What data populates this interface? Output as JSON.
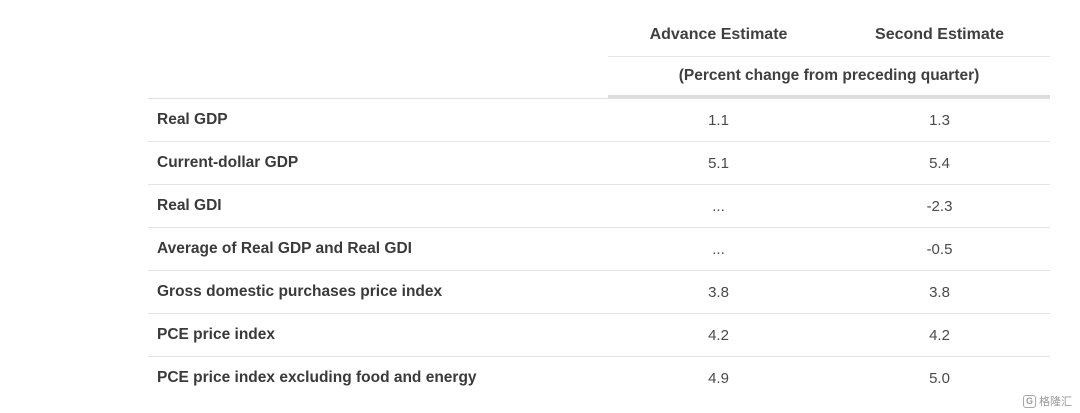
{
  "table": {
    "columns": [
      "Advance Estimate",
      "Second Estimate"
    ],
    "subheader": "(Percent change from preceding quarter)",
    "rows": [
      {
        "label": "Real GDP",
        "advance": "1.1",
        "second": "1.3"
      },
      {
        "label": "Current-dollar GDP",
        "advance": "5.1",
        "second": "5.4"
      },
      {
        "label": "Real GDI",
        "advance": "...",
        "second": "-2.3"
      },
      {
        "label": "Average of Real GDP and Real GDI",
        "advance": "...",
        "second": "-0.5"
      },
      {
        "label": "Gross domestic purchases price index",
        "advance": "3.8",
        "second": "3.8"
      },
      {
        "label": "PCE price index",
        "advance": "4.2",
        "second": "4.2"
      },
      {
        "label": "PCE price index excluding food and energy",
        "advance": "4.9",
        "second": "5.0"
      }
    ]
  },
  "watermark": {
    "icon": "g-logo-icon",
    "text": "格隆汇"
  }
}
